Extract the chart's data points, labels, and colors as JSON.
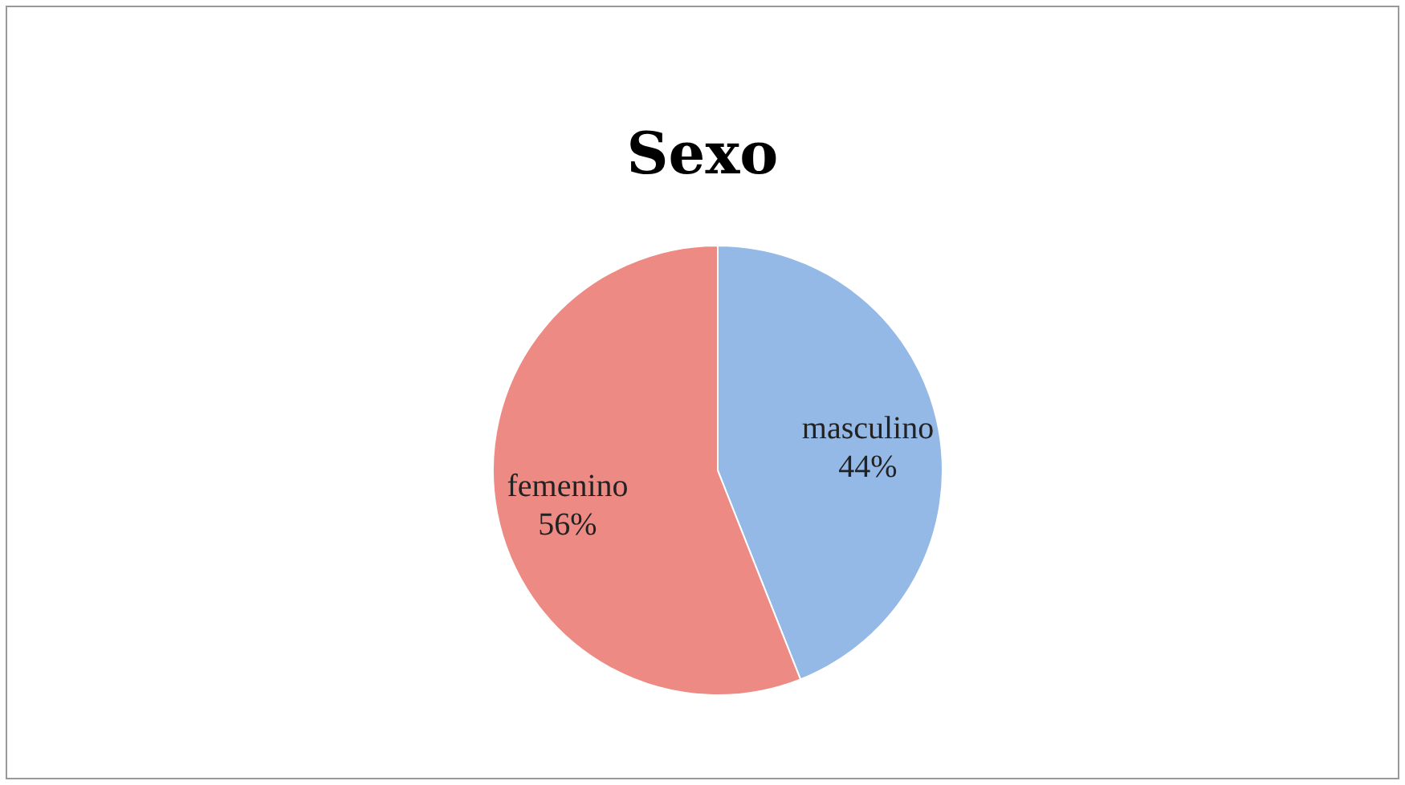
{
  "chart_data": {
    "type": "pie",
    "title": "Sexo",
    "categories": [
      "masculino",
      "femenino"
    ],
    "values": [
      44,
      56
    ],
    "value_labels": [
      "44%",
      "56%"
    ],
    "colors": [
      "#94b9e6",
      "#ec8a83"
    ]
  }
}
